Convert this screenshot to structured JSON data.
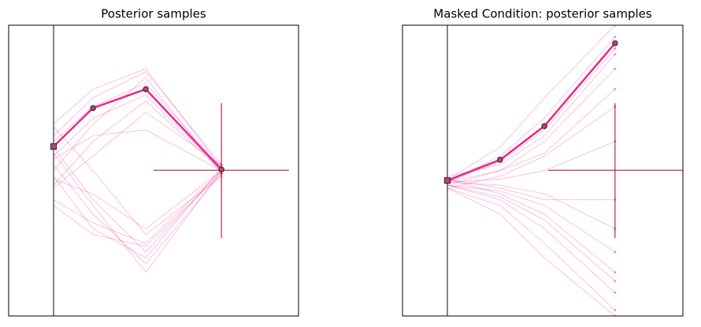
{
  "chart_data": [
    {
      "type": "line",
      "title": "Posterior samples",
      "xlim": [
        0,
        100
      ],
      "ylim": [
        0,
        100
      ],
      "color": "#e7298a",
      "marker_color": "#c2407a",
      "cross_color": "#a50026",
      "start_x": 15.5,
      "x": [
        15.5,
        29.1,
        47.3,
        73.4
      ],
      "samples": [
        [
          60,
          72,
          80,
          51
        ],
        [
          55,
          68,
          76,
          50
        ],
        [
          50,
          66,
          82,
          49
        ],
        [
          62,
          75,
          84,
          52
        ],
        [
          45,
          60,
          74,
          50
        ],
        [
          58,
          40,
          22,
          50
        ],
        [
          52,
          35,
          18,
          49
        ],
        [
          48,
          30,
          20,
          51
        ],
        [
          40,
          32,
          25,
          50
        ],
        [
          65,
          50,
          28,
          48
        ],
        [
          44,
          55,
          70,
          52
        ],
        [
          56,
          38,
          15,
          50
        ],
        [
          66,
          78,
          85,
          51
        ],
        [
          38,
          28,
          24,
          49
        ],
        [
          54,
          62,
          64,
          50
        ],
        [
          47,
          42,
          30,
          50
        ]
      ],
      "highlight": [
        58.3,
        71.5,
        78.0,
        50.4
      ],
      "target": {
        "x": 73.4,
        "y": 50.1,
        "x_span": [
          50,
          96.7
        ],
        "y_span": [
          26.8,
          73.2
        ]
      }
    },
    {
      "type": "line",
      "title": "Masked Condition: posterior samples",
      "xlim": [
        0,
        100
      ],
      "ylim": [
        0,
        100
      ],
      "color": "#e7298a",
      "marker_color": "#c2407a",
      "cross_color": "#a50026",
      "start_x": 16.0,
      "x": [
        16.0,
        34.8,
        50.6,
        75.8
      ],
      "samples": [
        [
          46,
          55,
          68,
          96
        ],
        [
          47,
          58,
          75,
          100
        ],
        [
          45,
          50,
          60,
          85
        ],
        [
          44,
          48,
          55,
          72
        ],
        [
          46,
          45,
          42,
          30
        ],
        [
          45,
          40,
          30,
          8
        ],
        [
          47,
          42,
          35,
          15
        ],
        [
          46,
          47,
          50,
          60
        ],
        [
          44,
          38,
          25,
          2
        ],
        [
          48,
          52,
          62,
          90
        ],
        [
          45,
          43,
          38,
          22
        ],
        [
          46,
          50,
          56,
          78
        ],
        [
          47,
          44,
          40,
          40
        ],
        [
          44,
          35,
          20,
          0
        ],
        [
          46,
          53,
          64,
          92
        ],
        [
          45,
          41,
          33,
          12
        ]
      ],
      "highlight": [
        46.6,
        53.7,
        65.3,
        93.8
      ],
      "target": {
        "x": 75.8,
        "y": 50.1,
        "x_span": [
          52.0,
          100
        ],
        "y_span": [
          26.8,
          73.2
        ]
      }
    }
  ]
}
